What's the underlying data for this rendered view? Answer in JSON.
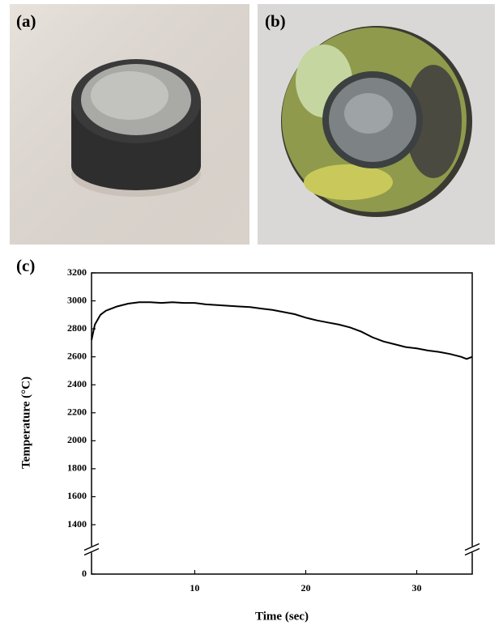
{
  "panel_labels": [
    "(a)",
    "(b)",
    "(c)"
  ],
  "chart_data": {
    "type": "line",
    "xlabel": "Time (sec)",
    "ylabel": "Temperature (°C)",
    "x": [
      0.7,
      1,
      1.5,
      2,
      3,
      4,
      5,
      6,
      7,
      8,
      9,
      10,
      11,
      12,
      13,
      14,
      15,
      16,
      17,
      18,
      19,
      20,
      21,
      22,
      23,
      24,
      25,
      26,
      27,
      28,
      29,
      30,
      31,
      32,
      33,
      34,
      34.5,
      35
    ],
    "values": [
      2720,
      2830,
      2900,
      2930,
      2960,
      2980,
      2990,
      2990,
      2985,
      2990,
      2985,
      2985,
      2975,
      2970,
      2965,
      2960,
      2955,
      2945,
      2935,
      2920,
      2905,
      2880,
      2860,
      2845,
      2830,
      2810,
      2780,
      2740,
      2710,
      2690,
      2670,
      2660,
      2645,
      2635,
      2620,
      2600,
      2585,
      2600
    ],
    "color": "#000000",
    "xlim": [
      0.7,
      35
    ],
    "xticks": [
      10,
      20,
      30
    ],
    "ylim": [
      0,
      3200
    ],
    "yticks": [
      0,
      1400,
      1600,
      1800,
      2000,
      2200,
      2400,
      2600,
      2800,
      3000,
      3200
    ],
    "axis_break": true
  }
}
